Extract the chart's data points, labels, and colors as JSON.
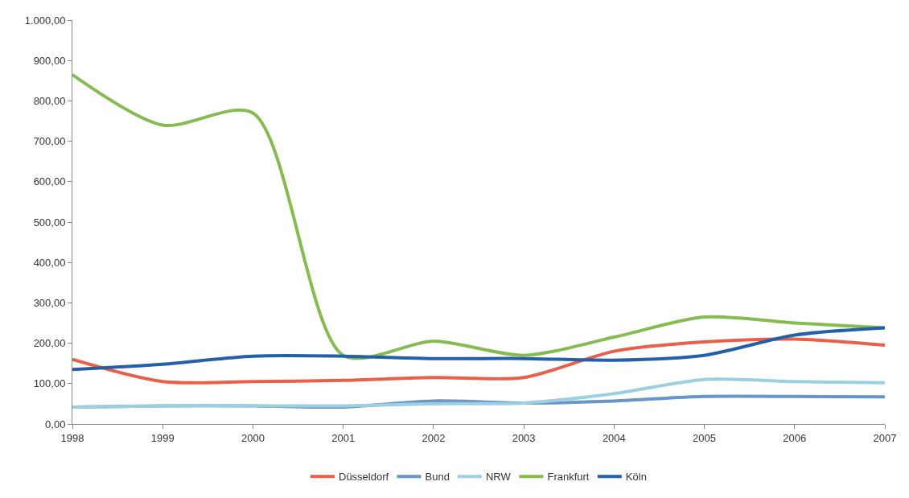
{
  "chart_data": {
    "type": "line",
    "categories": [
      "1998",
      "1999",
      "2000",
      "2001",
      "2002",
      "2003",
      "2004",
      "2005",
      "2006",
      "2007"
    ],
    "series": [
      {
        "name": "Düsseldorf",
        "color": "#e8604a",
        "values": [
          160,
          105,
          105,
          108,
          115,
          115,
          180,
          203,
          210,
          195
        ]
      },
      {
        "name": "Bund",
        "color": "#6a95c8",
        "values": [
          42,
          45,
          45,
          42,
          57,
          52,
          57,
          68,
          68,
          67
        ]
      },
      {
        "name": "NRW",
        "color": "#9ccfe0",
        "values": [
          42,
          45,
          45,
          45,
          50,
          52,
          75,
          110,
          105,
          102
        ]
      },
      {
        "name": "Frankfurt",
        "color": "#86bb4f",
        "values": [
          865,
          740,
          770,
          170,
          205,
          170,
          215,
          265,
          250,
          238
        ]
      },
      {
        "name": "Köln",
        "color": "#2360a8",
        "values": [
          135,
          148,
          168,
          168,
          162,
          162,
          158,
          170,
          220,
          238
        ]
      }
    ],
    "ylim": [
      0,
      1000
    ],
    "yticks": [
      {
        "value": 0,
        "label": "0,00"
      },
      {
        "value": 100,
        "label": "100,00"
      },
      {
        "value": 200,
        "label": "200,00"
      },
      {
        "value": 300,
        "label": "300,00"
      },
      {
        "value": 400,
        "label": "400,00"
      },
      {
        "value": 500,
        "label": "500,00"
      },
      {
        "value": 600,
        "label": "600,00"
      },
      {
        "value": 700,
        "label": "700,00"
      },
      {
        "value": 800,
        "label": "800,00"
      },
      {
        "value": 900,
        "label": "900,00"
      },
      {
        "value": 1000,
        "label": "1.000,00"
      }
    ],
    "legend": "bottom",
    "marker": "none",
    "line_style": "solid"
  }
}
